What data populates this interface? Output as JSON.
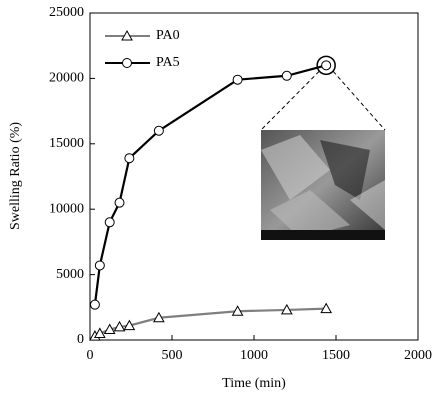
{
  "chart_data": {
    "type": "line",
    "x": [
      30,
      60,
      120,
      180,
      240,
      420,
      900,
      1200,
      1440
    ],
    "series": [
      {
        "name": "PA0",
        "color": "#7f7f7f",
        "marker": "triangle",
        "values": [
          300,
          500,
          800,
          1000,
          1100,
          1700,
          2200,
          2300,
          2400
        ]
      },
      {
        "name": "PA5",
        "color": "#000000",
        "marker": "circle",
        "values": [
          2700,
          5700,
          9000,
          10500,
          13900,
          16000,
          19900,
          20200,
          21000
        ]
      }
    ],
    "xlabel": "Time (min)",
    "ylabel": "Swelling Ratio (%)",
    "xlim": [
      0,
      2000
    ],
    "xticks": [
      0,
      500,
      1000,
      1500,
      2000
    ],
    "ylim": [
      0,
      25000
    ],
    "yticks": [
      0,
      5000,
      10000,
      15000,
      20000,
      25000
    ],
    "grid": false,
    "legend": "upper left"
  }
}
